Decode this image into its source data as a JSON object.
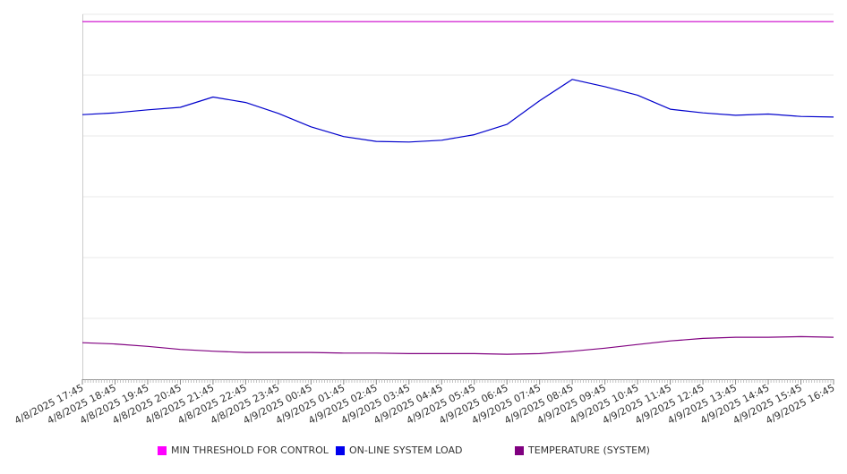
{
  "chart_data": {
    "type": "line",
    "title": "",
    "xlabel": "",
    "ylabel": "",
    "grid": true,
    "legend_position": "bottom",
    "ylim": [
      0,
      6
    ],
    "x_tick_labels": [
      "4/8/2025 17:45",
      "4/8/2025 18:45",
      "4/8/2025 19:45",
      "4/8/2025 20:45",
      "4/8/2025 21:45",
      "4/8/2025 22:45",
      "4/8/2025 23:45",
      "4/9/2025 00:45",
      "4/9/2025 01:45",
      "4/9/2025 02:45",
      "4/9/2025 03:45",
      "4/9/2025 04:45",
      "4/9/2025 05:45",
      "4/9/2025 06:45",
      "4/9/2025 07:45",
      "4/9/2025 08:45",
      "4/9/2025 09:45",
      "4/9/2025 10:45",
      "4/9/2025 11:45",
      "4/9/2025 12:45",
      "4/9/2025 13:45",
      "4/9/2025 14:45",
      "4/9/2025 15:45",
      "4/9/2025 16:45"
    ],
    "series": [
      {
        "name": "MIN THRESHOLD FOR CONTROL",
        "color": "#cc00cc",
        "values": [
          5.88,
          5.88,
          5.88,
          5.88,
          5.88,
          5.88,
          5.88,
          5.88,
          5.88,
          5.88,
          5.88,
          5.88,
          5.88,
          5.88,
          5.88,
          5.88,
          5.88,
          5.88,
          5.88,
          5.88,
          5.88,
          5.88,
          5.88,
          5.88
        ]
      },
      {
        "name": "ON-LINE SYSTEM LOAD",
        "color": "#0000cc",
        "values": [
          4.35,
          4.38,
          4.43,
          4.47,
          4.64,
          4.55,
          4.37,
          4.15,
          3.99,
          3.91,
          3.9,
          3.93,
          4.02,
          4.19,
          4.58,
          4.93,
          4.81,
          4.67,
          4.44,
          4.38,
          4.34,
          4.36,
          4.32,
          4.31
        ]
      },
      {
        "name": "TEMPERATURE (SYSTEM)",
        "color": "#800080",
        "values": [
          0.6,
          0.58,
          0.54,
          0.49,
          0.46,
          0.44,
          0.44,
          0.44,
          0.43,
          0.43,
          0.42,
          0.42,
          0.42,
          0.41,
          0.42,
          0.46,
          0.51,
          0.57,
          0.63,
          0.67,
          0.69,
          0.69,
          0.7,
          0.69
        ]
      }
    ]
  }
}
